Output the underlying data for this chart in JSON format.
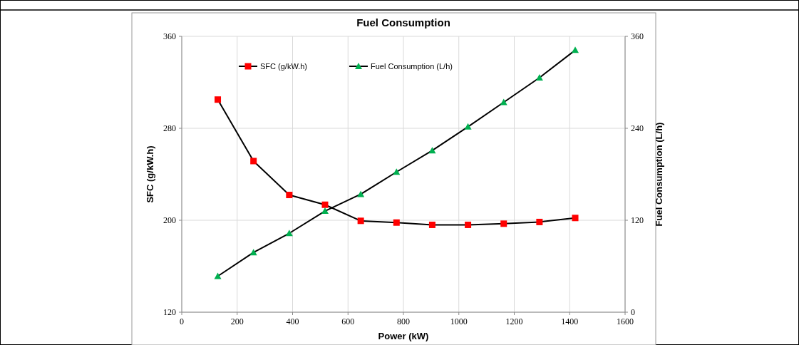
{
  "chart_data": {
    "type": "line",
    "title": "Fuel Consumption",
    "xlabel": "Power (kW)",
    "ylabel": "SFC (g/kW.h)",
    "y2label": "Fuel Consumption (L/h)",
    "x": [
      130,
      259,
      388,
      517,
      646,
      775,
      904,
      1033,
      1162,
      1291,
      1420
    ],
    "series": [
      {
        "name": "SFC (g/kW.h)",
        "color": "#ff0000",
        "marker": "square",
        "values": [
          305,
          251.5,
          222,
          213.5,
          199.5,
          198,
          196,
          196,
          197,
          198.5,
          202
        ]
      },
      {
        "name": "Fuel Consumption (L/h)",
        "color": "#00b050",
        "marker": "triangle",
        "axis": "y2",
        "values": [
          47,
          78,
          103,
          132,
          154,
          183,
          211,
          242,
          274,
          306,
          342
        ]
      }
    ],
    "xlim": [
      0,
      1600
    ],
    "xticks": [
      0,
      200,
      400,
      600,
      800,
      1000,
      1200,
      1400,
      1600
    ],
    "ylim": [
      120,
      360
    ],
    "yticks": [
      120,
      200,
      280,
      360
    ],
    "y2lim": [
      0,
      360
    ],
    "y2ticks": [
      0,
      120,
      240,
      360
    ],
    "grid": true,
    "legend": "top",
    "line_style": "solid"
  }
}
